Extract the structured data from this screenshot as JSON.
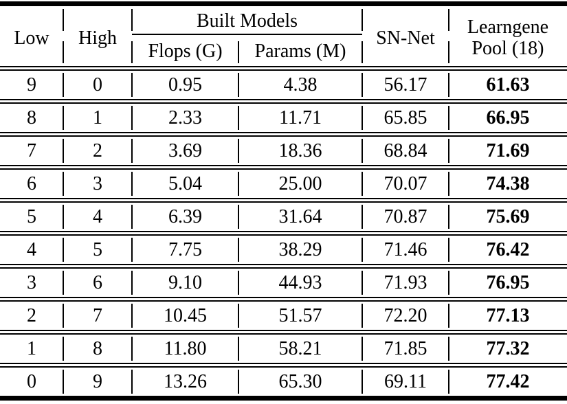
{
  "table": {
    "header": {
      "low": "Low",
      "high": "High",
      "built_models": "Built Models",
      "flops": "Flops (G)",
      "params": "Params (M)",
      "sn_net": "SN-Net",
      "learngene_line1": "Learngene",
      "learngene_line2": "Pool (18)"
    },
    "columns": [
      "Low",
      "High",
      "Flops (G)",
      "Params (M)",
      "SN-Net",
      "Learngene Pool (18)"
    ],
    "rows": [
      {
        "low": "9",
        "high": "0",
        "flops": "0.95",
        "params": "4.38",
        "sn_net": "56.17",
        "learngene_pool": "61.63"
      },
      {
        "low": "8",
        "high": "1",
        "flops": "2.33",
        "params": "11.71",
        "sn_net": "65.85",
        "learngene_pool": "66.95"
      },
      {
        "low": "7",
        "high": "2",
        "flops": "3.69",
        "params": "18.36",
        "sn_net": "68.84",
        "learngene_pool": "71.69"
      },
      {
        "low": "6",
        "high": "3",
        "flops": "5.04",
        "params": "25.00",
        "sn_net": "70.07",
        "learngene_pool": "74.38"
      },
      {
        "low": "5",
        "high": "4",
        "flops": "6.39",
        "params": "31.64",
        "sn_net": "70.87",
        "learngene_pool": "75.69"
      },
      {
        "low": "4",
        "high": "5",
        "flops": "7.75",
        "params": "38.29",
        "sn_net": "71.46",
        "learngene_pool": "76.42"
      },
      {
        "low": "3",
        "high": "6",
        "flops": "9.10",
        "params": "44.93",
        "sn_net": "71.93",
        "learngene_pool": "76.95"
      },
      {
        "low": "2",
        "high": "7",
        "flops": "10.45",
        "params": "51.57",
        "sn_net": "72.20",
        "learngene_pool": "77.13"
      },
      {
        "low": "1",
        "high": "8",
        "flops": "11.80",
        "params": "58.21",
        "sn_net": "71.85",
        "learngene_pool": "77.32"
      },
      {
        "low": "0",
        "high": "9",
        "flops": "13.26",
        "params": "65.30",
        "sn_net": "69.11",
        "learngene_pool": "77.42"
      }
    ],
    "colors": {
      "text": "#000000",
      "background": "#ffffff",
      "rule": "#000000"
    }
  }
}
